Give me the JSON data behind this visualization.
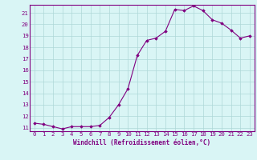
{
  "x": [
    0,
    1,
    2,
    3,
    4,
    5,
    6,
    7,
    8,
    9,
    10,
    11,
    12,
    13,
    14,
    15,
    16,
    17,
    18,
    19,
    20,
    21,
    22,
    23
  ],
  "y": [
    11.4,
    11.3,
    11.1,
    10.9,
    11.1,
    11.1,
    11.1,
    11.2,
    11.9,
    13.0,
    14.4,
    17.3,
    18.6,
    18.8,
    19.4,
    21.3,
    21.2,
    21.6,
    21.2,
    20.4,
    20.1,
    19.5,
    18.8,
    19.0
  ],
  "line_color": "#800080",
  "marker": "D",
  "marker_size": 1.8,
  "bg_color": "#d9f5f5",
  "grid_color": "#aed8d8",
  "xlabel": "Windchill (Refroidissement éolien,°C)",
  "xlabel_fontsize": 5.5,
  "tick_fontsize": 5.2,
  "ylim_min": 10.7,
  "ylim_max": 21.7,
  "xlim_min": -0.5,
  "xlim_max": 23.5,
  "yticks": [
    11,
    12,
    13,
    14,
    15,
    16,
    17,
    18,
    19,
    20,
    21
  ],
  "xticks": [
    0,
    1,
    2,
    3,
    4,
    5,
    6,
    7,
    8,
    9,
    10,
    11,
    12,
    13,
    14,
    15,
    16,
    17,
    18,
    19,
    20,
    21,
    22,
    23
  ]
}
